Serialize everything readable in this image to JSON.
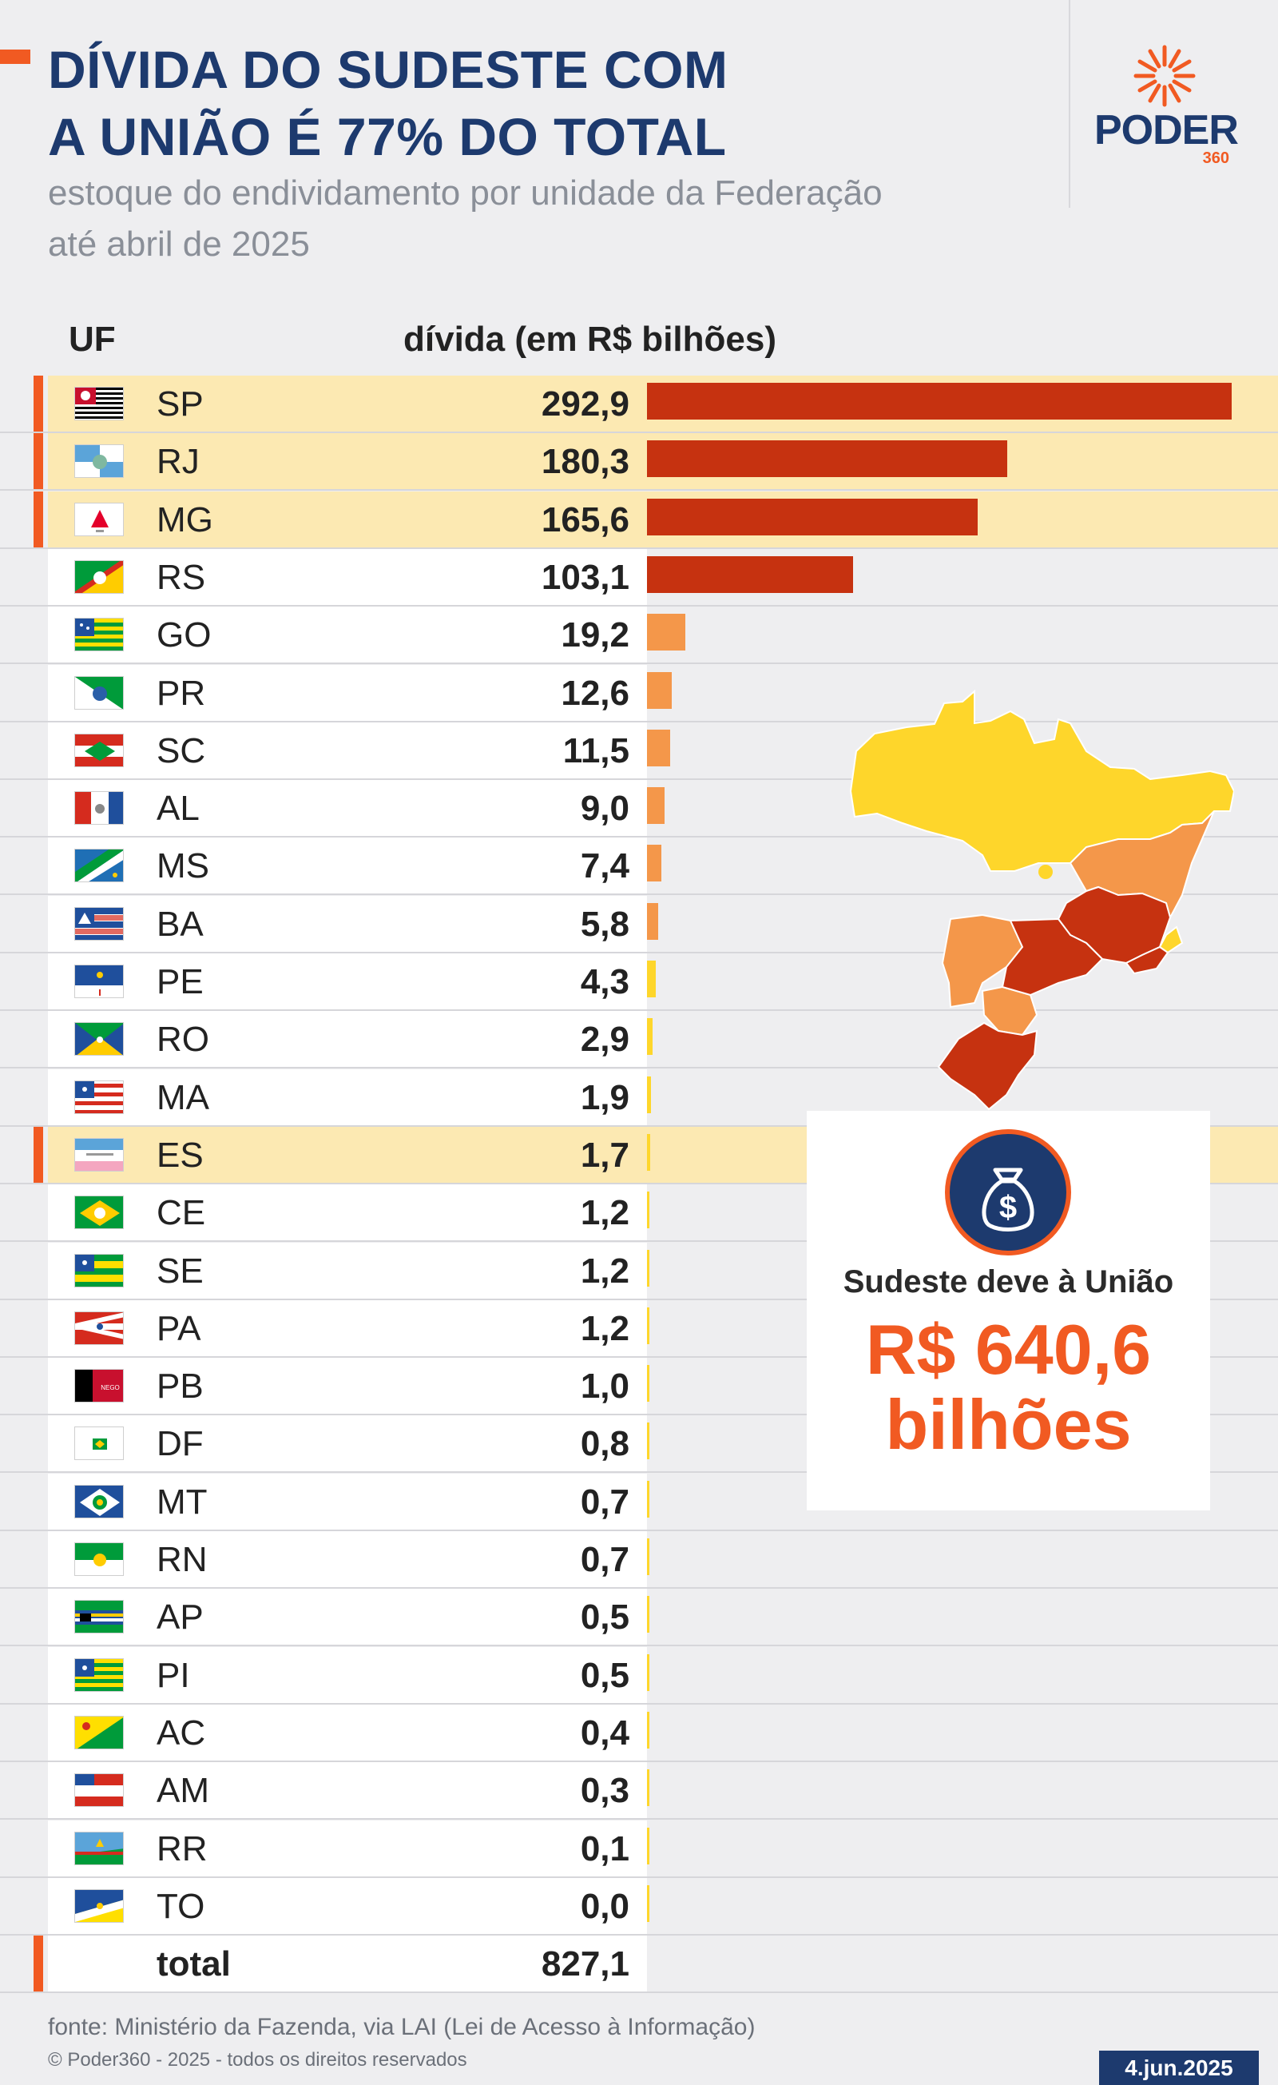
{
  "header": {
    "title": "DÍVIDA DO SUDESTE COM\nA UNIÃO É 77% DO TOTAL",
    "subtitle": "estoque do endividamento por unidade da Federação\naté abril de 2025"
  },
  "logo": {
    "name": "PODER",
    "suffix": "360"
  },
  "colors": {
    "accent": "#f15a22",
    "navy": "#1d3a6e",
    "highlight_row": "#fce9b2",
    "bar_high": "#c63210",
    "bar_mid": "#f4974a",
    "bar_low": "#fed62b"
  },
  "chart_data": {
    "type": "bar",
    "orientation": "horizontal",
    "column_headers": {
      "uf": "UF",
      "value": "dívida (em R$ bilhões)"
    },
    "categories": [
      "SP",
      "RJ",
      "MG",
      "RS",
      "GO",
      "PR",
      "SC",
      "AL",
      "MS",
      "BA",
      "PE",
      "RO",
      "MA",
      "ES",
      "CE",
      "SE",
      "PA",
      "PB",
      "DF",
      "MT",
      "RN",
      "AP",
      "PI",
      "AC",
      "AM",
      "RR",
      "TO"
    ],
    "values": [
      292.9,
      180.3,
      165.6,
      103.1,
      19.2,
      12.6,
      11.5,
      9.0,
      7.4,
      5.8,
      4.3,
      2.9,
      1.9,
      1.7,
      1.2,
      1.2,
      1.2,
      1.0,
      0.8,
      0.7,
      0.7,
      0.5,
      0.5,
      0.4,
      0.3,
      0.1,
      0.0
    ],
    "labels": [
      "292,9",
      "180,3",
      "165,6",
      "103,1",
      "19,2",
      "12,6",
      "11,5",
      "9,0",
      "7,4",
      "5,8",
      "4,3",
      "2,9",
      "1,9",
      "1,7",
      "1,2",
      "1,2",
      "1,2",
      "1,0",
      "0,8",
      "0,7",
      "0,7",
      "0,5",
      "0,5",
      "0,4",
      "0,3",
      "0,1",
      "0,0"
    ],
    "tiers": [
      "high",
      "high",
      "high",
      "high",
      "mid",
      "mid",
      "mid",
      "mid",
      "mid",
      "mid",
      "low",
      "low",
      "low",
      "low",
      "low",
      "low",
      "low",
      "low",
      "low",
      "low",
      "low",
      "low",
      "low",
      "low",
      "low",
      "low",
      "low"
    ],
    "highlighted": [
      "SP",
      "RJ",
      "MG",
      "ES"
    ],
    "total": {
      "label": "total",
      "value": 827.1,
      "display": "827,1"
    },
    "xlim": [
      0,
      292.9
    ]
  },
  "callout": {
    "label": "Sudeste deve à União",
    "value": "R$ 640,6\nbilhões"
  },
  "footer": {
    "source": "fonte: Ministério da Fazenda, via LAI (Lei de Acesso à Informação)",
    "copyright": "© Poder360 - 2025 - todos os direitos reservados",
    "date": "4.jun.2025"
  }
}
